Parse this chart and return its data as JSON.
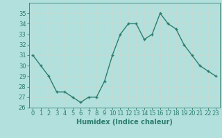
{
  "x": [
    0,
    1,
    2,
    3,
    4,
    5,
    6,
    7,
    8,
    9,
    10,
    11,
    12,
    13,
    14,
    15,
    16,
    17,
    18,
    19,
    20,
    21,
    22,
    23
  ],
  "y": [
    31,
    30.0,
    29.0,
    27.5,
    27.5,
    27.0,
    26.5,
    27.0,
    27.0,
    28.5,
    31.0,
    33.0,
    34.0,
    34.0,
    32.5,
    33.0,
    35.0,
    34.0,
    33.5,
    32.0,
    31.0,
    30.0,
    29.5,
    29.0
  ],
  "line_color": "#2d7d6e",
  "marker_color": "#2d7d6e",
  "bg_color": "#b2e0dc",
  "grid_color": "#c8d8d0",
  "xlabel": "Humidex (Indice chaleur)",
  "xlabel_fontsize": 7,
  "ylim": [
    26,
    36
  ],
  "xlim": [
    -0.5,
    23.5
  ],
  "yticks": [
    26,
    27,
    28,
    29,
    30,
    31,
    32,
    33,
    34,
    35
  ],
  "xticks": [
    0,
    1,
    2,
    3,
    4,
    5,
    6,
    7,
    8,
    9,
    10,
    11,
    12,
    13,
    14,
    15,
    16,
    17,
    18,
    19,
    20,
    21,
    22,
    23
  ],
  "tick_fontsize": 6,
  "line_width": 1.0,
  "marker_size": 3.5
}
